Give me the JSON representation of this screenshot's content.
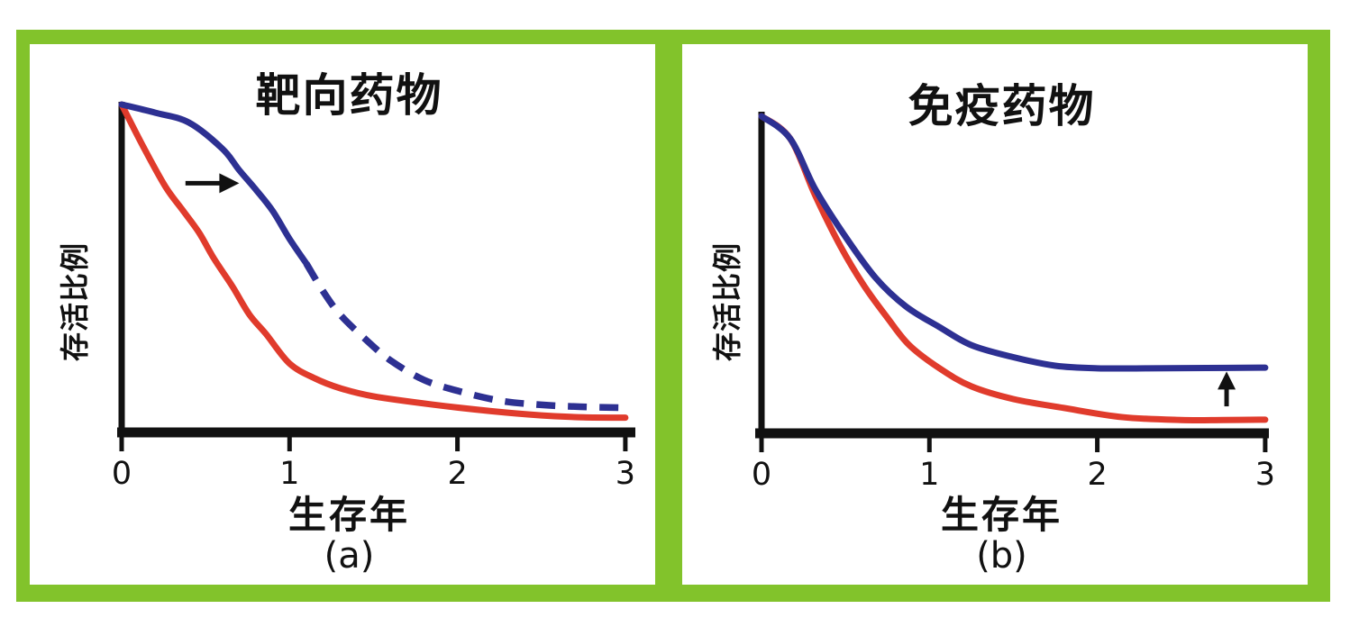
{
  "figure": {
    "description": "Two-panel survival curve comparison figure",
    "border_color": "#82c32b",
    "panel_background": "#ffffff",
    "axis_color": "#111111",
    "blue_color": "#2d3092",
    "red_color": "#e03b2c"
  },
  "panels": [
    {
      "id": "a",
      "title": "靶向药物",
      "ylabel": "存活比例",
      "xlabel": "生存年",
      "caption": "(a)"
    },
    {
      "id": "b",
      "title": "免疫药物",
      "ylabel": "存活比例",
      "xlabel": "生存年",
      "caption": "(b)"
    }
  ],
  "chart_data": [
    {
      "panel": "a",
      "type": "line",
      "title": "靶向药物",
      "xlabel": "生存年",
      "ylabel": "存活比例",
      "xlim": [
        0,
        3
      ],
      "ylim": [
        0,
        1
      ],
      "x_ticks": [
        0,
        1,
        2,
        3
      ],
      "grid": false,
      "legend": "none",
      "series": [
        {
          "name": "blue-curve-targeted-drug",
          "color": "#2d3092",
          "dash_from_x": 1.1,
          "dash_note": "solid line becomes dashed after about x=1.1 years",
          "x": [
            0,
            0.2,
            0.4,
            0.6,
            0.7,
            0.8,
            0.9,
            1.0,
            1.1,
            1.2,
            1.3,
            1.45,
            1.6,
            1.8,
            2.0,
            2.25,
            2.5,
            2.75,
            3.0
          ],
          "y": [
            1.0,
            0.975,
            0.945,
            0.865,
            0.8,
            0.74,
            0.675,
            0.59,
            0.515,
            0.43,
            0.36,
            0.285,
            0.22,
            0.16,
            0.127,
            0.097,
            0.084,
            0.078,
            0.075
          ]
        },
        {
          "name": "red-curve-control",
          "color": "#e03b2c",
          "x": [
            0,
            0.13,
            0.26,
            0.36,
            0.46,
            0.55,
            0.66,
            0.76,
            0.86,
            1.0,
            1.15,
            1.3,
            1.5,
            1.85,
            2.2,
            2.5,
            2.75,
            3.0
          ],
          "y": [
            1.0,
            0.87,
            0.75,
            0.68,
            0.61,
            0.53,
            0.445,
            0.36,
            0.3,
            0.21,
            0.165,
            0.135,
            0.11,
            0.085,
            0.065,
            0.052,
            0.046,
            0.045
          ]
        }
      ],
      "annotations": [
        {
          "shape": "arrow-right",
          "from_x": 0.38,
          "to_x": 0.7,
          "y": 0.76,
          "meaning": "curve shifted to the right"
        }
      ]
    },
    {
      "panel": "b",
      "type": "line",
      "title": "免疫药物",
      "xlabel": "生存年",
      "ylabel": "存活比例",
      "xlim": [
        0,
        3
      ],
      "ylim": [
        0,
        1
      ],
      "x_ticks": [
        0,
        1,
        2,
        3
      ],
      "grid": false,
      "legend": "none",
      "series": [
        {
          "name": "blue-curve-immunotherapy",
          "color": "#2d3092",
          "x": [
            0,
            0.17,
            0.32,
            0.5,
            0.68,
            0.86,
            1.06,
            1.25,
            1.5,
            1.75,
            2.0,
            2.3,
            2.65,
            3.0
          ],
          "y": [
            1.0,
            0.93,
            0.77,
            0.62,
            0.49,
            0.4,
            0.335,
            0.278,
            0.24,
            0.213,
            0.205,
            0.205,
            0.206,
            0.207
          ]
        },
        {
          "name": "red-curve-control",
          "color": "#e03b2c",
          "x": [
            0,
            0.17,
            0.32,
            0.47,
            0.61,
            0.75,
            0.88,
            1.06,
            1.25,
            1.5,
            1.8,
            2.15,
            2.5,
            2.75,
            3.0
          ],
          "y": [
            1.0,
            0.93,
            0.75,
            0.59,
            0.466,
            0.364,
            0.278,
            0.205,
            0.148,
            0.108,
            0.08,
            0.051,
            0.042,
            0.042,
            0.043
          ]
        }
      ],
      "annotations": [
        {
          "shape": "arrow-up",
          "x": 2.77,
          "from_y": 0.085,
          "to_y": 0.195,
          "meaning": "long-term survival plateau raised"
        }
      ]
    }
  ]
}
